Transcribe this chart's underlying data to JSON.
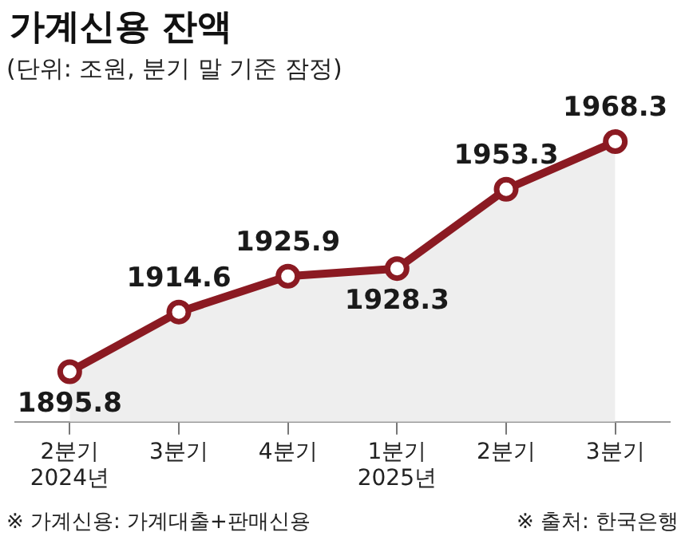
{
  "chart_data": {
    "type": "area",
    "title": "가계신용 잔액",
    "subtitle": "(단위: 조원, 분기 말 기준 잠정)",
    "categories": [
      "2분기\n2024년",
      "3분기",
      "4분기",
      "1분기\n2025년",
      "2분기",
      "3분기"
    ],
    "series": [
      {
        "color": "#8b1a22",
        "values": [
          1895.8,
          1914.6,
          1925.9,
          1928.3,
          1953.3,
          1968.3
        ]
      }
    ],
    "tick_labels": "x",
    "grid": false,
    "marker": "circle",
    "line_style": "solid",
    "legend": false,
    "data_labels": true,
    "annotations": [
      "※ 가계신용: 가계대출+판매신용",
      "※ 출처: 한국은행"
    ]
  }
}
